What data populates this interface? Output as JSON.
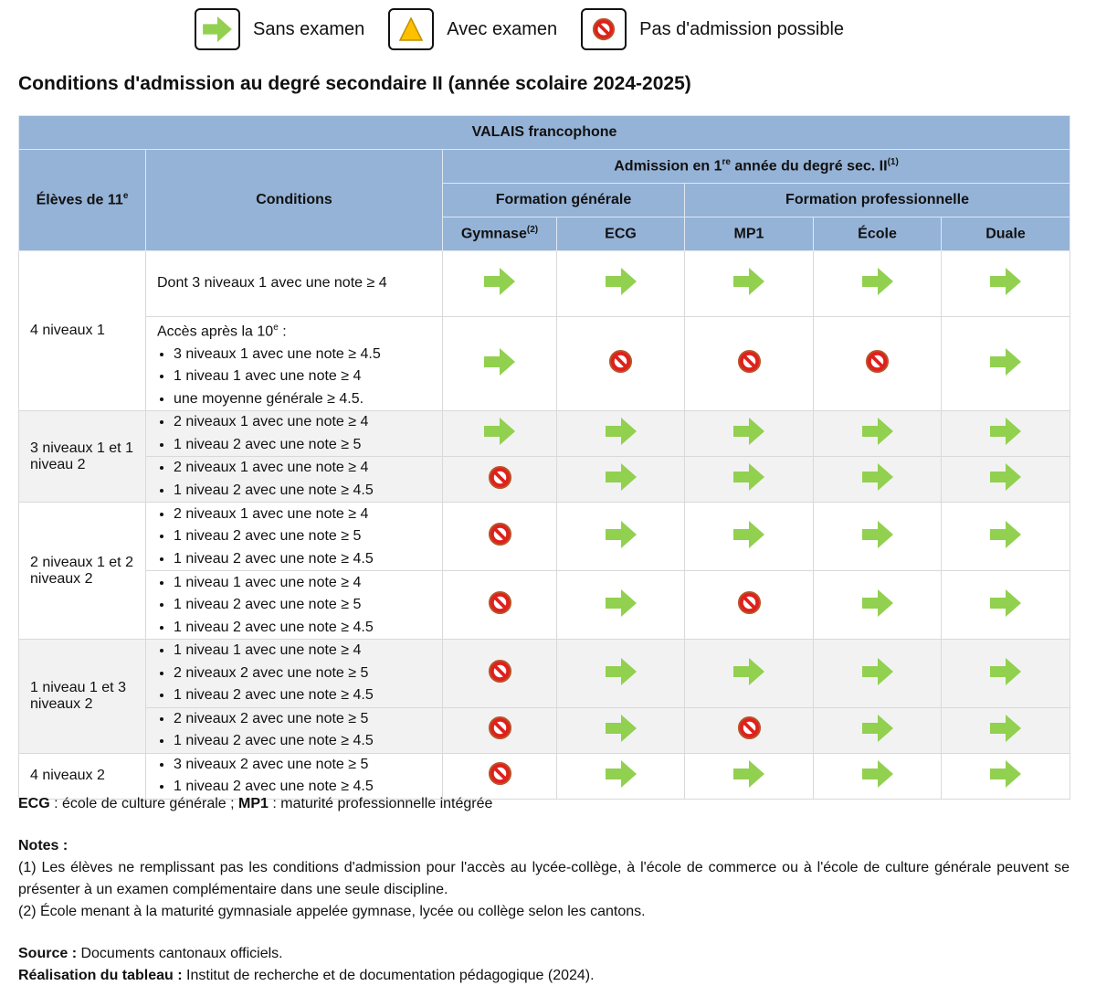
{
  "legend": {
    "sans": "Sans examen",
    "avec": "Avec examen",
    "non": "Pas d'admission possible"
  },
  "colors": {
    "arrow": "#92d050",
    "triangle": "#ffc000",
    "header": "#95b3d7",
    "stop": "#e0201c"
  },
  "title": "Conditions d'admission au degré secondaire II (année scolaire 2024-2025)",
  "header": {
    "region": "VALAIS francophone",
    "eleves": "Élèves de 11",
    "eleves_sup": "e",
    "conditions": "Conditions",
    "admission": "Admission en 1",
    "admission_sup": "re",
    "admission_rest": " année du degré sec. II",
    "admission_note": "(1)",
    "generale": "Formation générale",
    "pro": "Formation professionnelle",
    "cols": [
      {
        "label": "Gymnase",
        "sup": "(2)"
      },
      {
        "label": "ECG",
        "sup": ""
      },
      {
        "label": "MP1",
        "sup": ""
      },
      {
        "label": "École",
        "sup": ""
      },
      {
        "label": "Duale",
        "sup": ""
      }
    ]
  },
  "groups": [
    {
      "label": "4 niveaux 1",
      "rows": [
        {
          "intro": "Dont 3 niveaux 1 avec une note ≥ 4",
          "bullets": [],
          "icons": [
            "sans",
            "sans",
            "sans",
            "sans",
            "sans"
          ]
        },
        {
          "intro": "Accès après la 10",
          "intro_sup": "e",
          "intro_end": " :",
          "bullets": [
            "3 niveaux 1 avec une note ≥ 4.5",
            "1 niveau 1 avec une note ≥ 4",
            "une moyenne générale ≥ 4.5."
          ],
          "icons": [
            "sans",
            "non",
            "non",
            "non",
            "sans"
          ]
        }
      ]
    },
    {
      "label": "3 niveaux 1 et 1 niveau 2",
      "rows": [
        {
          "bullets": [
            "2 niveaux 1 avec une note ≥ 4",
            "1 niveau 2 avec une note ≥ 5"
          ],
          "icons": [
            "sans",
            "sans",
            "sans",
            "sans",
            "sans"
          ]
        },
        {
          "bullets": [
            "2 niveaux 1 avec une note ≥ 4",
            "1 niveau 2 avec une note ≥ 4.5"
          ],
          "icons": [
            "non",
            "sans",
            "sans",
            "sans",
            "sans"
          ]
        }
      ]
    },
    {
      "label": "2 niveaux 1 et 2 niveaux 2",
      "rows": [
        {
          "bullets": [
            "2 niveaux 1 avec une note ≥ 4",
            "1 niveau 2 avec une note ≥ 5",
            "1 niveau 2 avec une note ≥ 4.5"
          ],
          "icons": [
            "non",
            "sans",
            "sans",
            "sans",
            "sans"
          ]
        },
        {
          "bullets": [
            "1 niveau 1 avec une note ≥ 4",
            "1 niveau 2 avec une note ≥ 5",
            "1 niveau 2 avec une note ≥ 4.5"
          ],
          "icons": [
            "non",
            "sans",
            "non",
            "sans",
            "sans"
          ]
        }
      ]
    },
    {
      "label": "1 niveau 1 et 3 niveaux 2",
      "rows": [
        {
          "bullets": [
            "1 niveau 1 avec une note ≥ 4",
            "2 niveaux 2 avec une note ≥ 5",
            "1 niveau 2 avec une note ≥ 4.5"
          ],
          "icons": [
            "non",
            "sans",
            "sans",
            "sans",
            "sans"
          ]
        },
        {
          "bullets": [
            "2 niveaux 2 avec une note ≥ 5",
            "1 niveau 2 avec une note ≥ 4.5"
          ],
          "icons": [
            "non",
            "sans",
            "non",
            "sans",
            "sans"
          ]
        }
      ]
    },
    {
      "label": "4 niveaux 2",
      "rows": [
        {
          "bullets": [
            "3 niveaux 2 avec une note ≥ 5",
            "1 niveau 2 avec une note ≥ 4.5"
          ],
          "icons": [
            "non",
            "sans",
            "sans",
            "sans",
            "sans"
          ]
        }
      ]
    }
  ],
  "abbrev": {
    "ecg": "ECG",
    "ecg_text": " : école de culture générale ; ",
    "mp1": "MP1",
    "mp1_text": " : maturité professionnelle intégrée"
  },
  "notes": {
    "title": "Notes :",
    "n1": "(1) Les élèves ne remplissant pas les conditions d'admission pour l'accès au lycée-collège, à l'école de commerce ou à l'école de culture générale peuvent se présenter à un examen complémentaire dans une seule discipline.",
    "n2": "(2) École menant à la maturité gymnasiale appelée gymnase, lycée ou collège selon les cantons."
  },
  "source": {
    "label": "Source :",
    "text": " Documents cantonaux officiels."
  },
  "credit": {
    "label": "Réalisation du tableau :",
    "text": " Institut de recherche et de documentation pédagogique (2024)."
  }
}
